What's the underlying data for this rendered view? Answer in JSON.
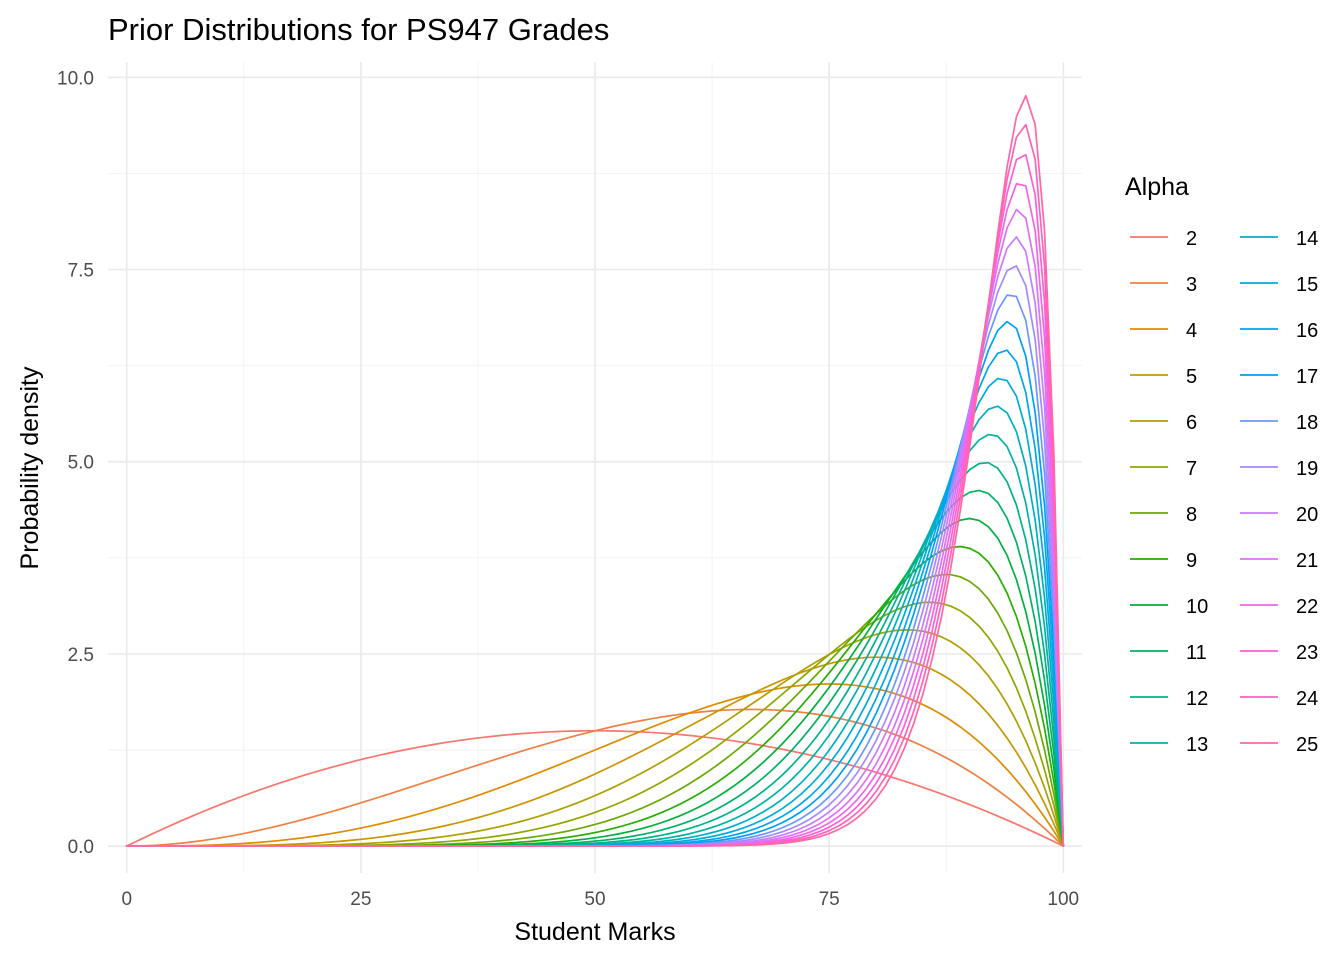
{
  "chart_data": {
    "type": "line",
    "title": "Prior Distributions for PS947 Grades",
    "xlabel": "Student Marks",
    "ylabel": "Probability density",
    "xlim": [
      -2,
      102
    ],
    "ylim": [
      -0.35,
      10.2
    ],
    "x_ticks": [
      0,
      25,
      50,
      75,
      100
    ],
    "x_tick_labels": [
      "0",
      "25",
      "50",
      "75",
      "100"
    ],
    "y_ticks": [
      0,
      2.5,
      5,
      7.5,
      10
    ],
    "y_tick_labels": [
      "0.0",
      "2.5",
      "5.0",
      "7.5",
      "10.0"
    ],
    "grid": true,
    "legend_title": "Alpha",
    "legend_position": "right",
    "distribution": "beta",
    "beta_shape2": 2,
    "series": [
      {
        "name": "2",
        "alpha": 2,
        "color": "#F8766D"
      },
      {
        "name": "3",
        "alpha": 3,
        "color": "#EE8043"
      },
      {
        "name": "4",
        "alpha": 4,
        "color": "#DE8C00"
      },
      {
        "name": "5",
        "alpha": 5,
        "color": "#CA9600"
      },
      {
        "name": "6",
        "alpha": 6,
        "color": "#B19E00"
      },
      {
        "name": "7",
        "alpha": 7,
        "color": "#93A500"
      },
      {
        "name": "8",
        "alpha": 8,
        "color": "#6BAA00"
      },
      {
        "name": "9",
        "alpha": 9,
        "color": "#27AE00"
      },
      {
        "name": "10",
        "alpha": 10,
        "color": "#00B13A"
      },
      {
        "name": "11",
        "alpha": 11,
        "color": "#00B265"
      },
      {
        "name": "12",
        "alpha": 12,
        "color": "#00B388"
      },
      {
        "name": "13",
        "alpha": 13,
        "color": "#00B2A6"
      },
      {
        "name": "14",
        "alpha": 14,
        "color": "#00B0C2"
      },
      {
        "name": "15",
        "alpha": 15,
        "color": "#00ACDA"
      },
      {
        "name": "16",
        "alpha": 16,
        "color": "#00A6EE"
      },
      {
        "name": "17",
        "alpha": 17,
        "color": "#00A0FA"
      },
      {
        "name": "18",
        "alpha": 18,
        "color": "#6D97FF"
      },
      {
        "name": "19",
        "alpha": 19,
        "color": "#A58AFF"
      },
      {
        "name": "20",
        "alpha": 20,
        "color": "#C77CFF"
      },
      {
        "name": "21",
        "alpha": 21,
        "color": "#DF70F9"
      },
      {
        "name": "22",
        "alpha": 22,
        "color": "#F066EA"
      },
      {
        "name": "23",
        "alpha": 23,
        "color": "#FC61D5"
      },
      {
        "name": "24",
        "alpha": 24,
        "color": "#FF62BC"
      },
      {
        "name": "25",
        "alpha": 25,
        "color": "#FF68A1"
      }
    ]
  }
}
